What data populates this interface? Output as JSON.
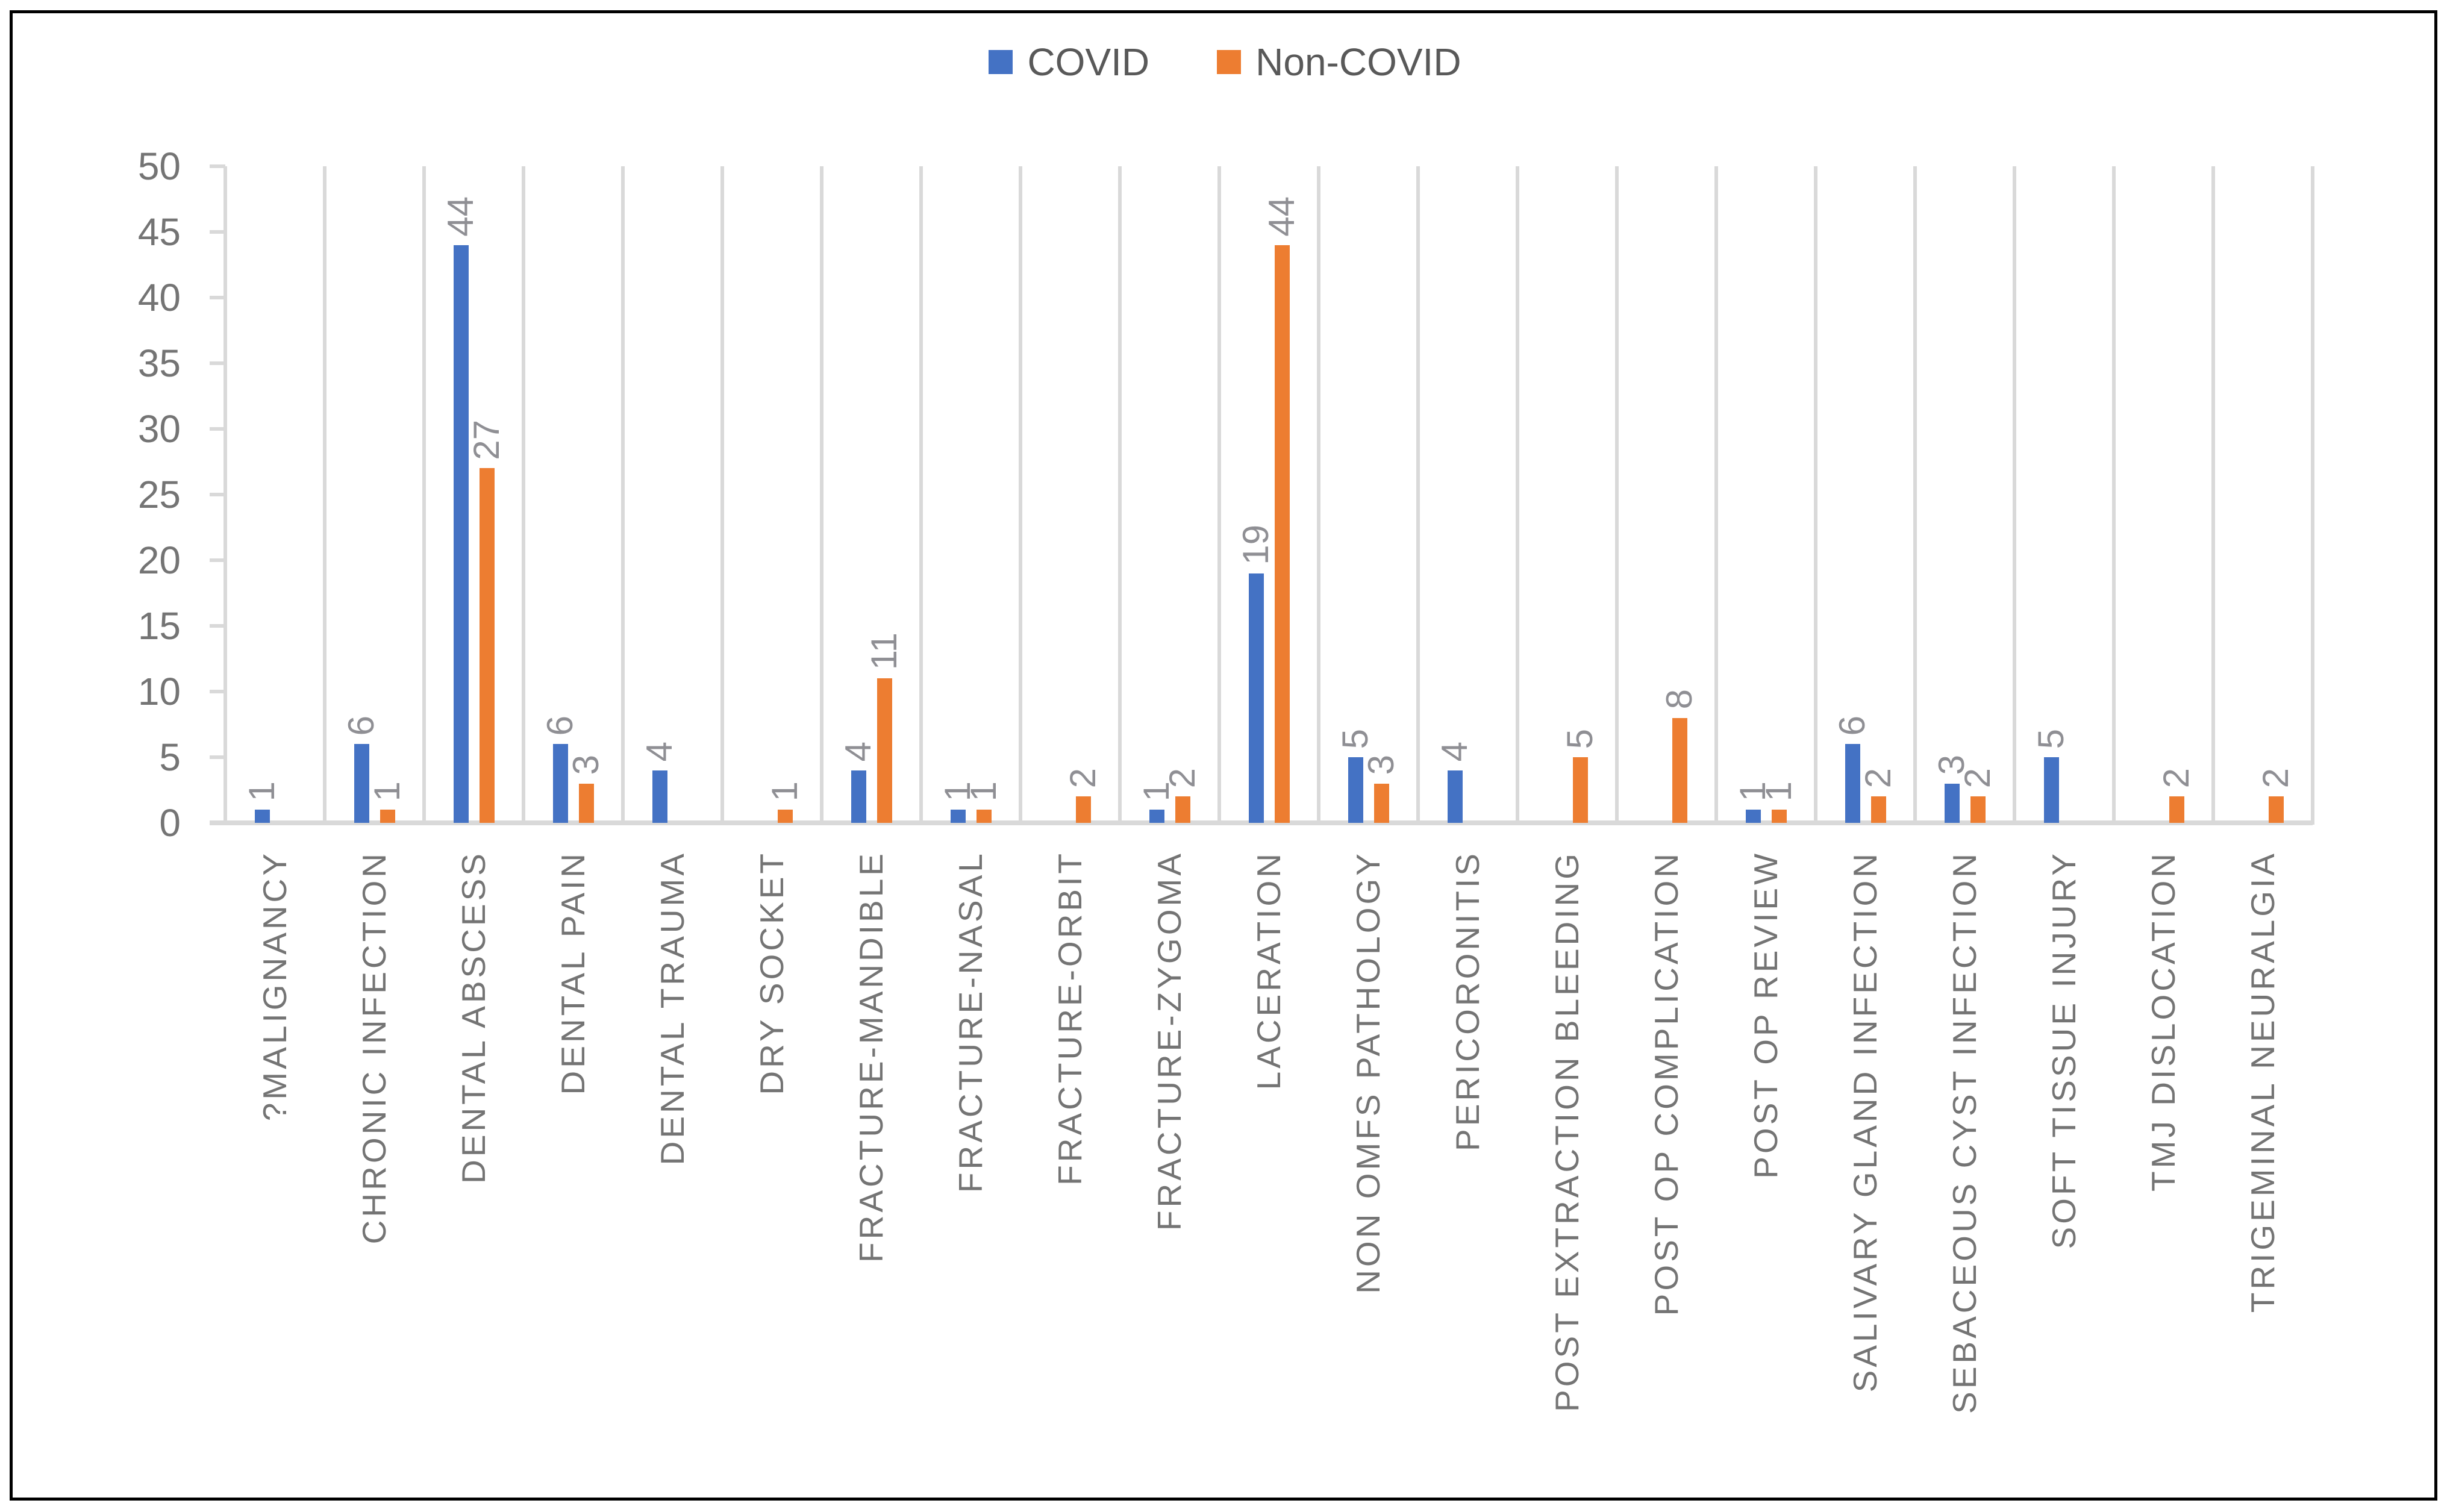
{
  "legend": {
    "items": [
      {
        "label": "COVID",
        "color": "#4472C4"
      },
      {
        "label": "Non-COVID",
        "color": "#ED7D31"
      }
    ]
  },
  "chart_data": {
    "type": "bar",
    "title": "",
    "xlabel": "",
    "ylabel": "",
    "categories": [
      "?MALIGNANCY",
      "CHRONIC INFECTION",
      "DENTAL ABSCESS",
      "DENTAL PAIN",
      "DENTAL TRAUMA",
      "DRY SOCKET",
      "FRACTURE-MANDIBLE",
      "FRACTURE-NASAL",
      "FRACTURE-ORBIT",
      "FRACTURE-ZYGOMA",
      "LACERATION",
      "NON OMFS PATHOLOGY",
      "PERICORONITIS",
      "POST EXTRACTION BLEEDING",
      "POST OP COMPLICATION",
      "POST OP REVIEW",
      "SALIVARY GLAND INFECTION",
      "SEBACEOUS CYST INFECTION",
      "SOFT TISSUE INJURY",
      "TMJ DISLOCATION",
      "TRIGEMINAL NEURALGIA"
    ],
    "series": [
      {
        "name": "COVID",
        "color": "#4472C4",
        "values": [
          1,
          6,
          44,
          6,
          4,
          0,
          4,
          1,
          0,
          1,
          19,
          5,
          4,
          0,
          0,
          1,
          6,
          3,
          5,
          0,
          0
        ]
      },
      {
        "name": "Non-COVID",
        "color": "#ED7D31",
        "values": [
          0,
          1,
          27,
          3,
          0,
          1,
          11,
          1,
          2,
          2,
          44,
          3,
          0,
          5,
          8,
          1,
          2,
          2,
          0,
          2,
          2
        ]
      }
    ],
    "ylim": [
      0,
      50
    ],
    "y_ticks": [
      0,
      5,
      10,
      15,
      20,
      25,
      30,
      35,
      40,
      45,
      50
    ],
    "grid": "vertical category separators only",
    "legend_position": "top-center",
    "data_labels": "values shown above bars, rotated 90 CCW; zero values hidden",
    "colors": {
      "gridline": "#D9D9D9",
      "axis_line": "#D9D9D9",
      "axis_text": "#747474",
      "data_label_text": "#8F8F94",
      "legend_text": "#595959",
      "border": "#000000",
      "background": "#FFFFFF"
    }
  }
}
